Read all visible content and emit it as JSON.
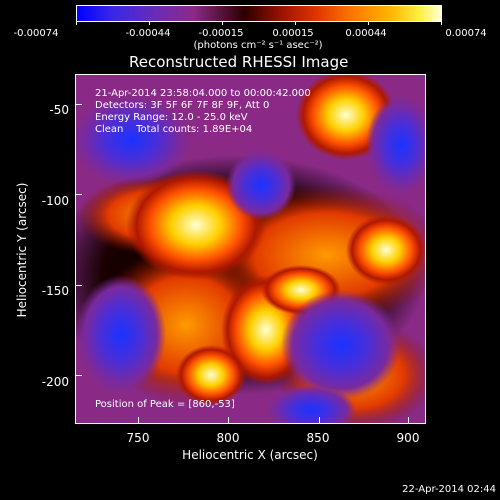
{
  "colorbar": {
    "tick_labels": [
      "-0.00074",
      "-0.00044",
      "-0.00015",
      "0.00015",
      "0.00044",
      "0.00074"
    ],
    "unit_label": "(photons cm⁻² s⁻¹ asec⁻²)"
  },
  "image": {
    "title": "Reconstructed RHESSI Image",
    "annotations": [
      "21-Apr-2014 23:58:04.000 to 00:00:42.000",
      "Detectors: 3F 5F 6F 7F 8F 9F, Att 0",
      "Energy Range: 12.0 - 25.0 keV",
      "Clean    Total counts: 1.89E+04"
    ],
    "peak_label": "Position of Peak = [860,-53]",
    "x_axis_label": "Heliocentric X (arcsec)",
    "y_axis_label": "Heliocentric Y (arcsec)",
    "x_ticks": [
      "750",
      "800",
      "850",
      "900"
    ],
    "y_ticks": [
      "-50",
      "-100",
      "-150",
      "-200"
    ]
  },
  "footer": {
    "timestamp": "22-Apr-2014 02:44"
  },
  "colors": {
    "background": "#000000",
    "text": "#ffffff",
    "colormap": [
      "#0033ff",
      "#5a2bc8",
      "#8a2a86",
      "#000000",
      "#a01a00",
      "#ff4a00",
      "#ff9a00",
      "#ffd000",
      "#ffffe0"
    ]
  }
}
